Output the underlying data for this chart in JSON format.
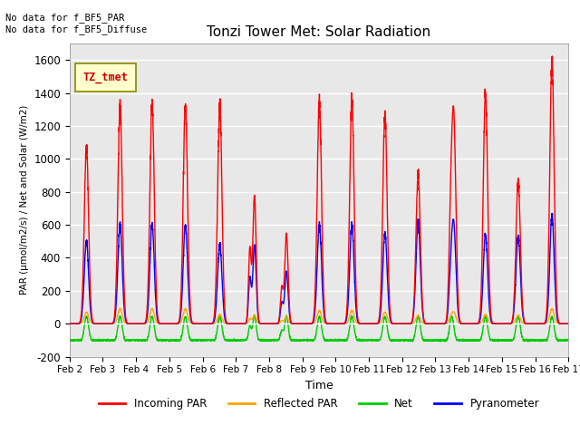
{
  "title": "Tonzi Tower Met: Solar Radiation",
  "ylabel": "PAR (μmol/m2/s) / Net and Solar (W/m2)",
  "xlabel": "Time",
  "ylim": [
    -200,
    1700
  ],
  "yticks": [
    -200,
    0,
    200,
    400,
    600,
    800,
    1000,
    1200,
    1400,
    1600
  ],
  "xtick_labels": [
    "Feb 2",
    "Feb 3",
    "Feb 4",
    "Feb 5",
    "Feb 6",
    "Feb 7",
    "Feb 8",
    "Feb 9",
    "Feb 10",
    "Feb 11",
    "Feb 12",
    "Feb 13",
    "Feb 14",
    "Feb 15",
    "Feb 16",
    "Feb 17"
  ],
  "annotation_text": "No data for f_BF5_PAR\nNo data for f_BF5_Diffuse",
  "legend_label": "TZ_tmet",
  "legend_entries": [
    "Incoming PAR",
    "Reflected PAR",
    "Net",
    "Pyranometer"
  ],
  "legend_colors": [
    "#ff0000",
    "#ffa500",
    "#00cc00",
    "#0000ff"
  ],
  "bg_color": "#e8e8e8",
  "line_colors": {
    "incoming": "#ff0000",
    "reflected": "#ffa500",
    "net": "#00cc00",
    "pyranometer": "#0000ff"
  },
  "par_peaks": [
    1070,
    1320,
    1330,
    1330,
    1330,
    780,
    550,
    1350,
    1360,
    1270,
    900,
    1250,
    1400,
    870,
    1600
  ],
  "pyra_peaks": [
    500,
    600,
    600,
    600,
    480,
    320,
    600,
    600,
    600,
    550,
    610,
    600,
    540,
    530,
    660
  ],
  "refl_peaks": [
    70,
    90,
    90,
    90,
    55,
    45,
    80,
    80,
    80,
    70,
    50,
    70,
    55,
    50,
    90
  ],
  "net_night": -100,
  "net_day_peak": 50,
  "sigma": 0.065,
  "n_per_day": 288,
  "n_days": 15
}
